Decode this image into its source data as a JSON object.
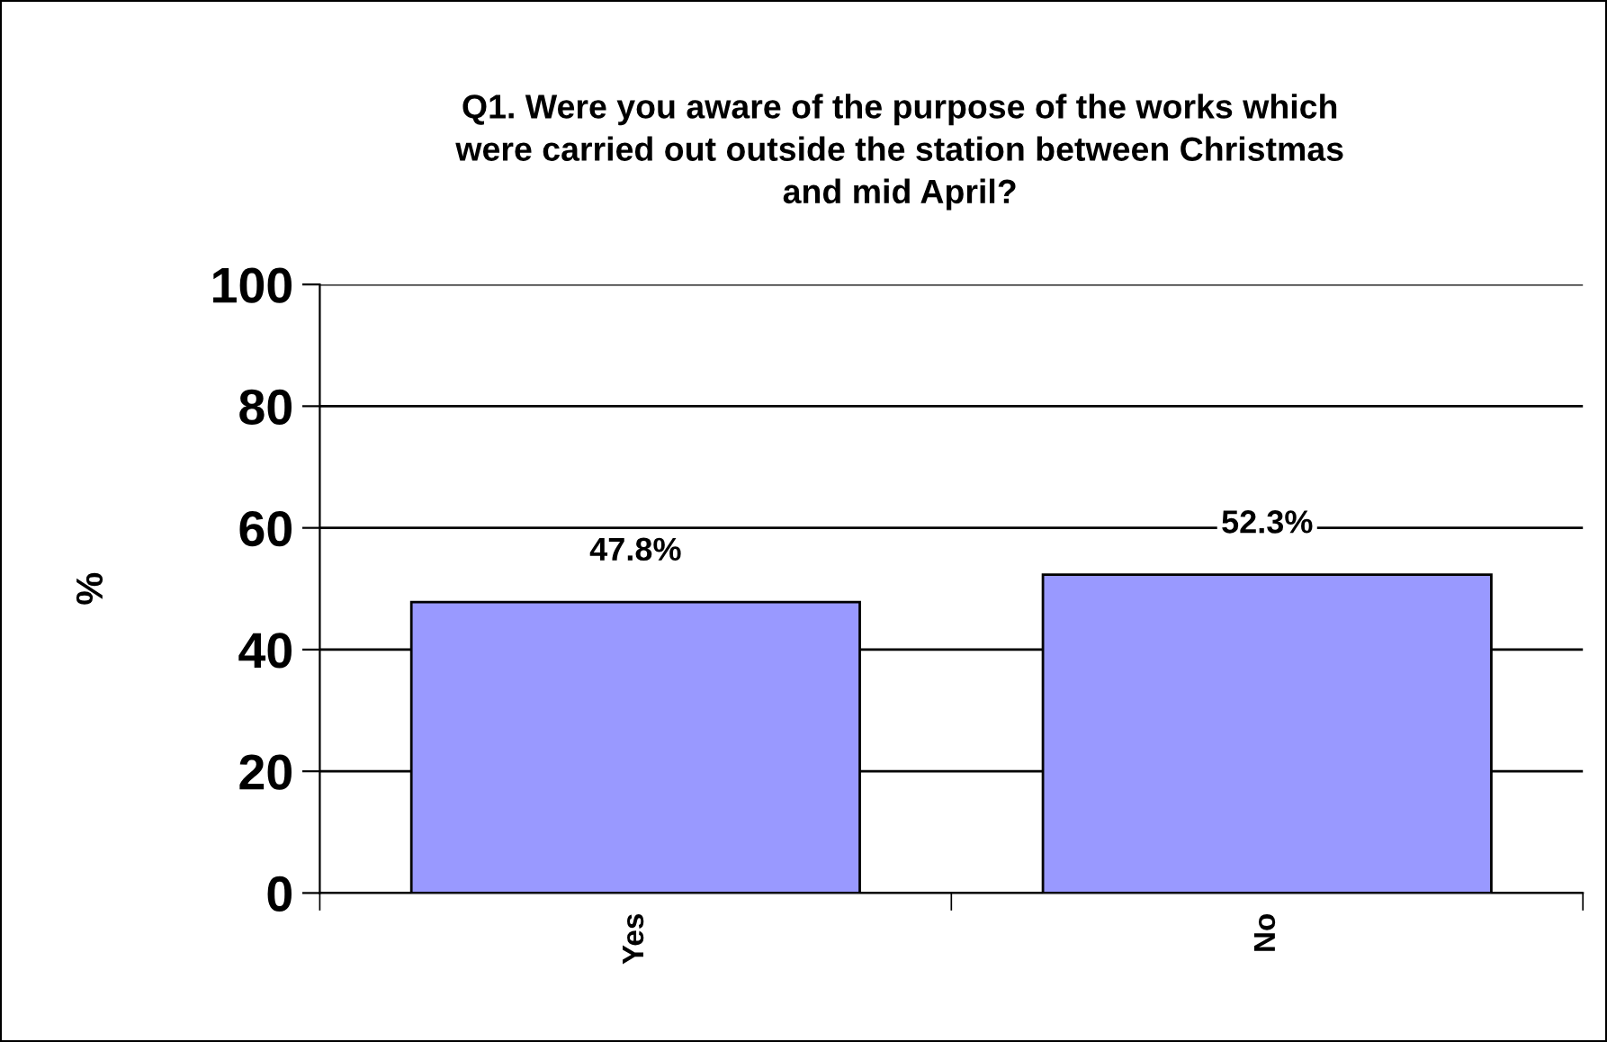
{
  "chart_data": {
    "type": "bar",
    "title": "Q1. Were you aware of the purpose of the works which\nwere carried out outside the station between Christmas\nand mid April?",
    "ylabel": "%",
    "categories": [
      "Yes",
      "No"
    ],
    "values": [
      47.8,
      52.3
    ],
    "value_labels": [
      "47.8%",
      "52.3%"
    ],
    "color": "#9999ff",
    "ylim": [
      0,
      100
    ],
    "yticks": [
      0,
      20,
      40,
      60,
      80,
      100
    ],
    "grid": "y",
    "legend": false
  }
}
